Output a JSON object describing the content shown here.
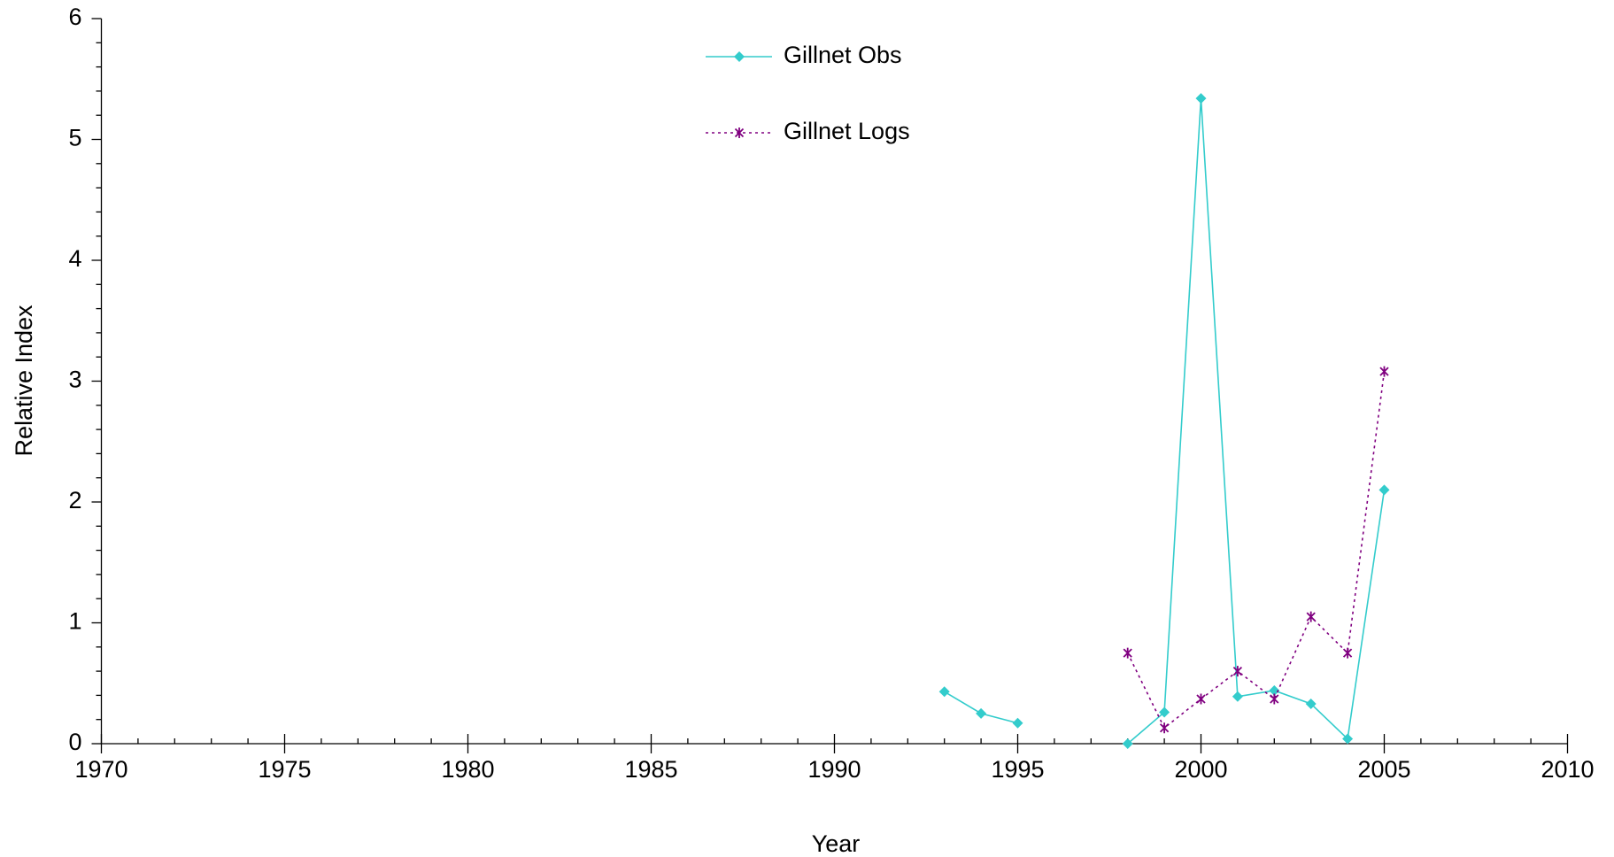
{
  "chart_data": {
    "type": "line",
    "xlabel": "Year",
    "ylabel": "Relative Index",
    "x": [
      1993,
      1994,
      1995,
      1996,
      1997,
      1998,
      1999,
      2000,
      2001,
      2002,
      2003,
      2004,
      2005
    ],
    "series": [
      {
        "name": "Gillnet Obs",
        "color": "#33cccc",
        "marker": "diamond",
        "linestyle": "solid",
        "values": [
          0.43,
          0.25,
          0.17,
          null,
          null,
          0,
          0.26,
          5.34,
          0.39,
          0.44,
          0.33,
          0.04,
          2.1
        ]
      },
      {
        "name": "Gillnet Logs",
        "color": "#800080",
        "marker": "asterisk",
        "linestyle": "dotted",
        "values": [
          null,
          null,
          null,
          null,
          null,
          0.75,
          0.13,
          0.37,
          0.6,
          0.37,
          1.05,
          0.75,
          3.08
        ]
      }
    ],
    "xlim": [
      1970,
      2010
    ],
    "xticks": [
      1970,
      1975,
      1980,
      1985,
      1990,
      1995,
      2000,
      2005,
      2010
    ],
    "ylim": [
      0,
      6
    ],
    "yticks": [
      0,
      1,
      2,
      3,
      4,
      5,
      6
    ],
    "grid": false,
    "legend": "top"
  }
}
